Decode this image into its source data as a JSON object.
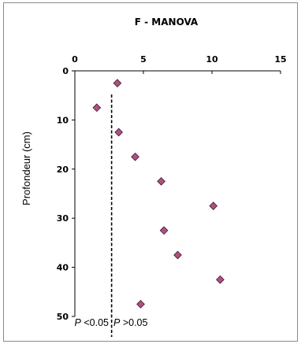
{
  "chart_data": {
    "type": "scatter",
    "title": "F - MANOVA",
    "xlabel": "",
    "ylabel": "Profondeur (cm)",
    "x_ticks": [
      "0",
      "5",
      "10",
      "15"
    ],
    "y_ticks": [
      "0",
      "10",
      "20",
      "30",
      "40",
      "50"
    ],
    "xlim": [
      0,
      15
    ],
    "ylim": [
      0,
      50
    ],
    "y_inverted": true,
    "x_axis_position": "top",
    "grid": false,
    "marker_color": "#b0507e",
    "marker_shape": "diamond",
    "series": [
      {
        "points": [
          {
            "x": 3.1,
            "y": 2.5
          },
          {
            "x": 1.6,
            "y": 7.5
          },
          {
            "x": 3.2,
            "y": 12.5
          },
          {
            "x": 4.4,
            "y": 17.5
          },
          {
            "x": 6.3,
            "y": 22.5
          },
          {
            "x": 10.1,
            "y": 27.5
          },
          {
            "x": 6.5,
            "y": 32.5
          },
          {
            "x": 7.5,
            "y": 37.5
          },
          {
            "x": 10.6,
            "y": 42.5
          },
          {
            "x": 4.8,
            "y": 47.5
          }
        ]
      }
    ],
    "threshold": {
      "x": 2.68,
      "style": "dashed",
      "label_left": {
        "symbol": "P",
        "text": " <0.05"
      },
      "label_right": {
        "symbol": "P",
        "text": " >0.05"
      }
    }
  }
}
